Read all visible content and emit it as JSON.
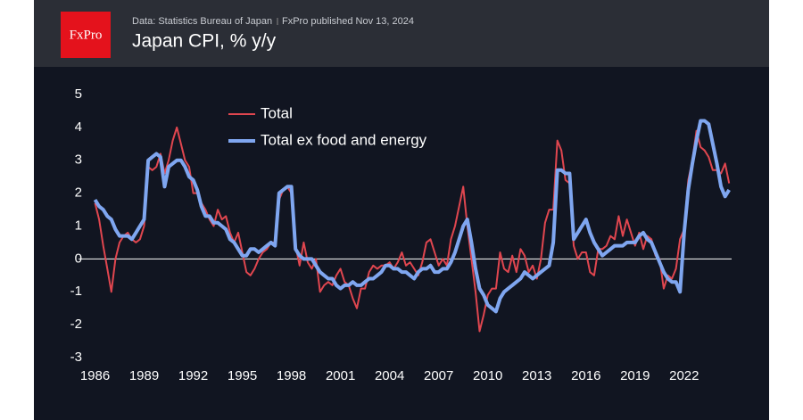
{
  "header": {
    "logo": "FxPro",
    "source": "Data: Statistics Bureau of Japan",
    "published": "FxPro published Nov 13, 2024",
    "title": "Japan CPI, % y/y"
  },
  "chart_data": {
    "type": "line",
    "x": [
      1986,
      1986.25,
      1986.5,
      1986.75,
      1987,
      1987.25,
      1987.5,
      1987.75,
      1988,
      1988.25,
      1988.5,
      1988.75,
      1989,
      1989.25,
      1989.5,
      1989.75,
      1990,
      1990.25,
      1990.5,
      1990.75,
      1991,
      1991.25,
      1991.5,
      1991.75,
      1992,
      1992.25,
      1992.5,
      1992.75,
      1993,
      1993.25,
      1993.5,
      1993.75,
      1994,
      1994.25,
      1994.5,
      1994.75,
      1995,
      1995.25,
      1995.5,
      1995.75,
      1996,
      1996.25,
      1996.5,
      1996.75,
      1997,
      1997.25,
      1997.5,
      1997.75,
      1998,
      1998.25,
      1998.5,
      1998.75,
      1999,
      1999.25,
      1999.5,
      1999.75,
      2000,
      2000.25,
      2000.5,
      2000.75,
      2001,
      2001.25,
      2001.5,
      2001.75,
      2002,
      2002.25,
      2002.5,
      2002.75,
      2003,
      2003.25,
      2003.5,
      2003.75,
      2004,
      2004.25,
      2004.5,
      2004.75,
      2005,
      2005.25,
      2005.5,
      2005.75,
      2006,
      2006.25,
      2006.5,
      2006.75,
      2007,
      2007.25,
      2007.5,
      2007.75,
      2008,
      2008.25,
      2008.5,
      2008.75,
      2009,
      2009.25,
      2009.5,
      2009.75,
      2010,
      2010.25,
      2010.5,
      2010.75,
      2011,
      2011.25,
      2011.5,
      2011.75,
      2012,
      2012.25,
      2012.5,
      2012.75,
      2013,
      2013.25,
      2013.5,
      2013.75,
      2014,
      2014.25,
      2014.5,
      2014.75,
      2015,
      2015.25,
      2015.5,
      2015.75,
      2016,
      2016.25,
      2016.5,
      2016.75,
      2017,
      2017.25,
      2017.5,
      2017.75,
      2018,
      2018.25,
      2018.5,
      2018.75,
      2019,
      2019.25,
      2019.5,
      2019.75,
      2020,
      2020.25,
      2020.5,
      2020.75,
      2021,
      2021.25,
      2021.5,
      2021.75,
      2022,
      2022.25,
      2022.5,
      2022.75,
      2023,
      2023.25,
      2023.5,
      2023.75,
      2024,
      2024.25,
      2024.5,
      2024.75
    ],
    "series": [
      {
        "name": "Total",
        "color": "#e0464f",
        "width": 2,
        "values": [
          1.7,
          1.2,
          0.4,
          -0.3,
          -1.0,
          0.0,
          0.5,
          0.7,
          0.8,
          0.6,
          0.5,
          0.6,
          1.0,
          2.8,
          2.7,
          2.8,
          3.2,
          2.6,
          3.0,
          3.6,
          4.0,
          3.5,
          3.0,
          2.8,
          2.0,
          2.0,
          1.7,
          1.5,
          1.2,
          1.0,
          1.5,
          1.2,
          1.3,
          0.8,
          0.5,
          0.8,
          0.2,
          -0.4,
          -0.5,
          -0.3,
          0.0,
          0.2,
          0.3,
          0.5,
          0.5,
          1.8,
          2.1,
          2.2,
          2.0,
          0.4,
          -0.2,
          0.5,
          -0.1,
          -0.3,
          0.0,
          -1.0,
          -0.8,
          -0.7,
          -0.8,
          -0.5,
          -0.3,
          -0.7,
          -0.8,
          -1.2,
          -1.5,
          -0.9,
          -0.9,
          -0.4,
          -0.2,
          -0.3,
          -0.2,
          -0.2,
          -0.1,
          -0.3,
          -0.1,
          0.2,
          -0.2,
          -0.1,
          -0.3,
          -0.5,
          -0.1,
          0.5,
          0.6,
          0.2,
          -0.2,
          0.0,
          -0.2,
          0.6,
          1.0,
          1.6,
          2.2,
          1.0,
          0.0,
          -1.0,
          -2.2,
          -1.7,
          -1.1,
          -0.9,
          -0.9,
          0.2,
          -0.3,
          -0.4,
          0.1,
          -0.4,
          0.3,
          0.1,
          -0.4,
          -0.2,
          -0.6,
          0.0,
          1.1,
          1.5,
          1.5,
          3.6,
          3.3,
          2.4,
          2.3,
          0.4,
          0.0,
          0.2,
          0.2,
          -0.4,
          -0.5,
          0.3,
          0.3,
          0.4,
          0.7,
          0.6,
          1.3,
          0.7,
          1.2,
          0.8,
          0.4,
          0.8,
          0.3,
          0.7,
          0.6,
          0.1,
          0.0,
          -0.9,
          -0.5,
          -0.6,
          -0.3,
          0.6,
          0.9,
          2.4,
          3.0,
          3.9,
          3.4,
          3.3,
          3.1,
          2.7,
          2.7,
          2.6,
          2.9,
          2.3
        ]
      },
      {
        "name": "Total ex food and energy",
        "color": "#7fa6f0",
        "width": 4,
        "values": [
          1.8,
          1.6,
          1.5,
          1.3,
          1.2,
          0.9,
          0.7,
          0.7,
          0.7,
          0.6,
          0.8,
          1.0,
          1.2,
          3.0,
          3.1,
          3.2,
          3.1,
          2.2,
          2.8,
          2.9,
          3.0,
          3.0,
          2.8,
          2.5,
          2.4,
          2.1,
          1.6,
          1.3,
          1.3,
          1.1,
          1.1,
          1.0,
          0.9,
          0.6,
          0.5,
          0.3,
          0.1,
          0.1,
          0.3,
          0.3,
          0.2,
          0.3,
          0.4,
          0.5,
          0.4,
          2.0,
          2.1,
          2.2,
          2.2,
          0.3,
          0.1,
          0.0,
          0.0,
          0.0,
          -0.2,
          -0.4,
          -0.5,
          -0.6,
          -0.6,
          -0.8,
          -0.9,
          -0.8,
          -0.8,
          -0.7,
          -0.8,
          -0.8,
          -0.7,
          -0.6,
          -0.6,
          -0.5,
          -0.4,
          -0.2,
          -0.2,
          -0.3,
          -0.3,
          -0.4,
          -0.4,
          -0.5,
          -0.6,
          -0.4,
          -0.3,
          -0.3,
          -0.2,
          -0.4,
          -0.4,
          -0.3,
          -0.3,
          -0.1,
          0.2,
          0.6,
          1.0,
          1.2,
          0.5,
          -0.3,
          -0.9,
          -1.1,
          -1.4,
          -1.5,
          -1.6,
          -1.2,
          -1.0,
          -0.9,
          -0.8,
          -0.7,
          -0.6,
          -0.4,
          -0.5,
          -0.6,
          -0.5,
          -0.4,
          -0.3,
          -0.2,
          0.5,
          2.7,
          2.7,
          2.6,
          2.6,
          0.6,
          0.8,
          1.0,
          1.2,
          0.8,
          0.5,
          0.3,
          0.1,
          0.2,
          0.3,
          0.4,
          0.4,
          0.4,
          0.5,
          0.5,
          0.5,
          0.7,
          0.8,
          0.6,
          0.5,
          0.2,
          -0.1,
          -0.4,
          -0.6,
          -0.7,
          -0.7,
          -1.0,
          0.8,
          2.1,
          2.9,
          3.6,
          4.2,
          4.2,
          4.1,
          3.5,
          2.9,
          2.2,
          1.9,
          2.1
        ]
      }
    ],
    "xlim": [
      1985.7,
      2024.9
    ],
    "xticks": [
      1986,
      1989,
      1992,
      1995,
      1998,
      2001,
      2004,
      2007,
      2010,
      2013,
      2016,
      2019,
      2022
    ],
    "ylim": [
      -3,
      5
    ],
    "yticks": [
      -3,
      -2,
      -1,
      0,
      1,
      2,
      3,
      4,
      5
    ],
    "grid": false,
    "legend": "top"
  }
}
